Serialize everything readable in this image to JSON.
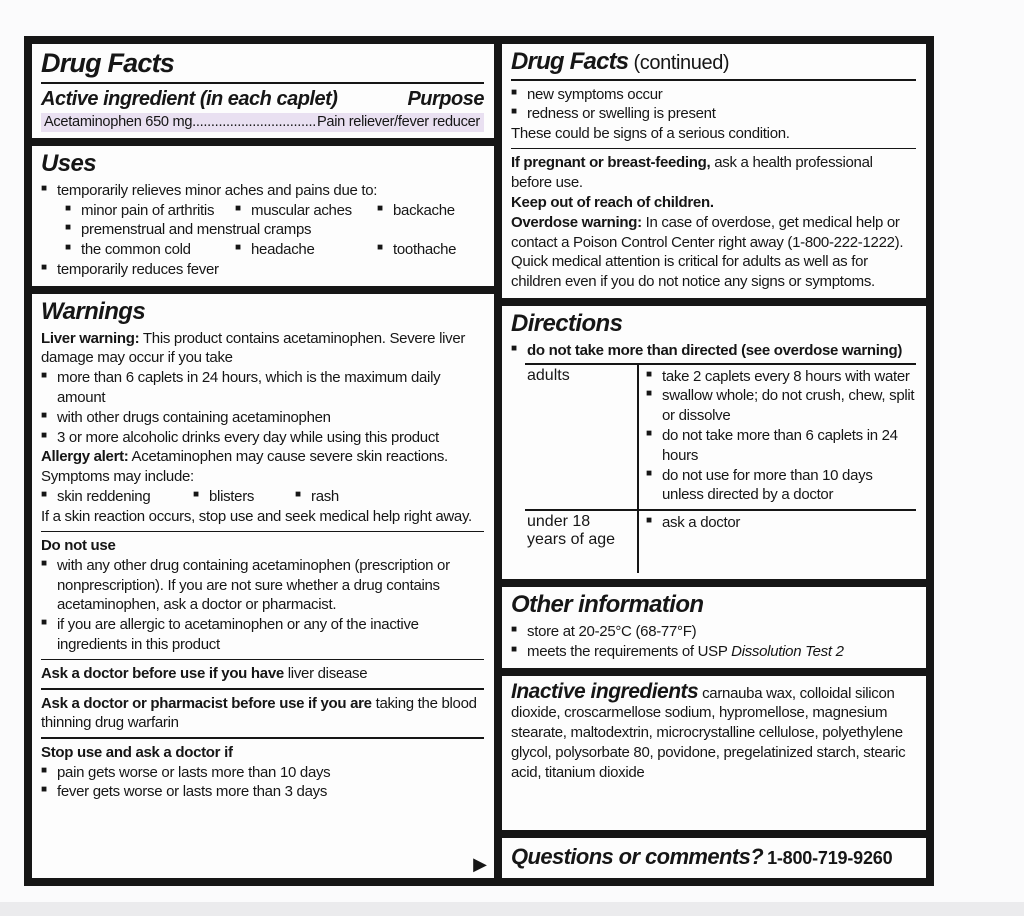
{
  "glyphs": {
    "bullet": "■",
    "arrow_right": "▶"
  },
  "colors": {
    "highlight": "#e9e0f1",
    "border": "#161616",
    "paper": "#fdfdfd",
    "text": "#161616",
    "page_bg": "#fbfbfc"
  },
  "left": {
    "title": "Drug Facts",
    "active": {
      "heading": "Active ingredient (in each caplet)",
      "purpose_heading": "Purpose",
      "name": "Acetaminophen 650 mg",
      "leader_dots": "......................................................................",
      "purpose": "Pain reliever/fever reducer"
    },
    "uses": {
      "heading": "Uses",
      "lead": "temporarily relieves minor aches and pains due to:",
      "row1": [
        "minor pain of arthritis",
        "muscular aches",
        "backache"
      ],
      "row2": "premenstrual and menstrual cramps",
      "row3": [
        "the common cold",
        "headache",
        "toothache"
      ],
      "last": "temporarily reduces fever"
    },
    "warnings": {
      "heading": "Warnings",
      "liver_bold": "Liver warning:",
      "liver_rest": " This product contains acetaminophen. Severe liver damage may occur if you take",
      "liver_items": [
        "more than 6 caplets in 24 hours, which is the maximum daily amount",
        "with other drugs containing acetaminophen",
        "3 or more alcoholic drinks every day while using this product"
      ],
      "allergy_bold": "Allergy alert:",
      "allergy_rest": " Acetaminophen may cause severe skin reactions. Symptoms may include:",
      "symptoms": [
        "skin reddening",
        "blisters",
        "rash"
      ],
      "skin_note": "If a skin reaction occurs, stop use and seek medical help right away.",
      "do_not_use_heading": "Do not use",
      "do_not_use_items": [
        "with any other drug containing acetaminophen (prescription or nonprescription). If you are not sure whether a drug contains acetaminophen, ask a doctor or pharmacist.",
        "if you are allergic to acetaminophen or any of the inactive ingredients in this product"
      ],
      "ask_doctor_bold": "Ask a doctor before use if you have",
      "ask_doctor_rest": " liver disease",
      "ask_pharmacist_bold": "Ask a doctor or pharmacist before use if you are",
      "ask_pharmacist_rest": " taking the blood thinning drug warfarin",
      "stop_use_heading": "Stop use and ask a doctor if",
      "stop_use_items": [
        "pain gets worse or lasts more than 10 days",
        "fever gets worse or lasts more than 3 days"
      ]
    }
  },
  "right": {
    "title_bold": "Drug Facts",
    "title_rest": " (continued)",
    "continued_items": [
      "new symptoms occur",
      "redness or swelling is present"
    ],
    "continued_note": "These could be signs of a serious condition.",
    "pregnant_bold": "If pregnant or breast-feeding,",
    "pregnant_rest": " ask a health professional before use.",
    "keep_out": "Keep out of reach of children.",
    "overdose_bold": "Overdose warning:",
    "overdose_rest": " In case of overdose, get medical help or contact a Poison Control Center right away (1-800-222-1222). Quick medical attention is critical for adults as well as for children even if you do not notice any signs or symptoms.",
    "directions": {
      "heading": "Directions",
      "lead": "do not take more than directed (see overdose warning)",
      "rows": [
        {
          "label": "adults",
          "items": [
            "take 2 caplets every 8 hours with water",
            "swallow whole; do not crush, chew, split or dissolve",
            "do not take more than 6 caplets in 24 hours",
            "do not use for more than 10 days unless directed by a doctor"
          ]
        },
        {
          "label": "under 18 years of age",
          "items": [
            "ask a doctor"
          ]
        }
      ]
    },
    "other": {
      "heading": "Other information",
      "item1": "store at 20-25°C (68-77°F)",
      "item2_plain": "meets the requirements of USP ",
      "item2_italic": "Dissolution Test 2"
    },
    "inactive": {
      "heading": "Inactive ingredients",
      "text": " carnauba wax, colloidal silicon dioxide, croscarmellose sodium, hypromellose, magnesium stearate, maltodextrin, microcrystalline cellulose, polyethylene glycol, polysorbate 80, povidone, pregelatinized starch, stearic acid, titanium dioxide"
    },
    "questions": {
      "heading": "Questions or comments?",
      "phone": "1-800-719-9260"
    }
  }
}
